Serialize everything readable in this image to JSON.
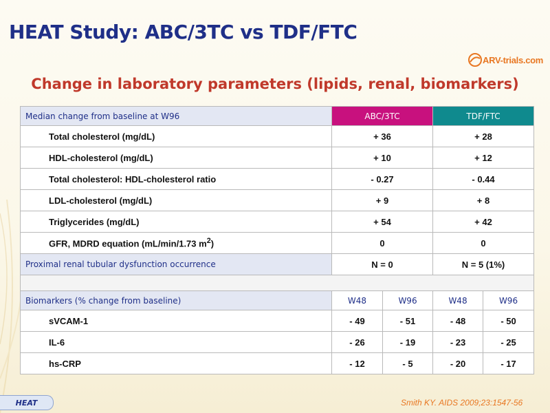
{
  "slide": {
    "title": "HEAT Study: ABC/3TC vs TDF/FTC",
    "subtitle": "Change in laboratory parameters (lipids, renal, biomarkers)",
    "logo": "ARV-trials.com",
    "tag": "HEAT",
    "reference": "Smith KY. AIDS 2009;23:1547-56"
  },
  "table": {
    "header": {
      "label": "Median change from baseline at W96",
      "col1": "ABC/3TC",
      "col2": "TDF/FTC"
    },
    "rows": [
      {
        "label": "Total cholesterol (mg/dL)",
        "abc": "+ 36",
        "tdf": "+ 28"
      },
      {
        "label": "HDL-cholesterol (mg/dL)",
        "abc": "+ 10",
        "tdf": "+ 12"
      },
      {
        "label": "Total cholesterol: HDL-cholesterol ratio",
        "abc": "- 0.27",
        "tdf": "- 0.44"
      },
      {
        "label": "LDL-cholesterol (mg/dL)",
        "abc": "+ 9",
        "tdf": "+ 8"
      },
      {
        "label": "Triglycerides (mg/dL)",
        "abc": "+ 54",
        "tdf": "+ 42"
      },
      {
        "label": "GFR, MDRD equation (mL/min/1.73 m",
        "label_sup": "2",
        "label_end": ")",
        "abc": "0",
        "tdf": "0"
      }
    ],
    "renal": {
      "label": "Proximal renal tubular dysfunction occurrence",
      "abc": "N = 0",
      "tdf": "N = 5 (1%)"
    },
    "biomarkers": {
      "label": "Biomarkers (% change from baseline)",
      "weeks": [
        "W48",
        "W96",
        "W48",
        "W96"
      ],
      "rows": [
        {
          "label": "sVCAM-1",
          "values": [
            "- 49",
            "- 51",
            "- 48",
            "- 50"
          ]
        },
        {
          "label": "IL-6",
          "values": [
            "- 26",
            "- 19",
            "- 23",
            "- 25"
          ]
        },
        {
          "label": "hs-CRP",
          "values": [
            "- 12",
            "- 5",
            "- 20",
            "- 17"
          ]
        }
      ]
    }
  }
}
